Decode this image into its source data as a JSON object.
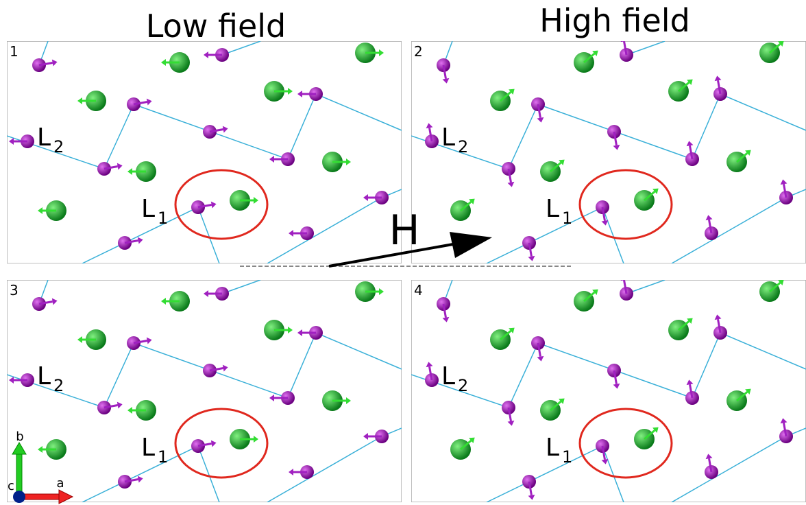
{
  "columns": {
    "left": "Low field",
    "right": "High field"
  },
  "panels": [
    {
      "number": "1",
      "l1": {
        "label": "L",
        "sub": "1"
      },
      "l2": {
        "label": "L",
        "sub": "2"
      }
    },
    {
      "number": "2",
      "l1": {
        "label": "L",
        "sub": "1"
      },
      "l2": {
        "label": "L",
        "sub": "2"
      }
    },
    {
      "number": "3",
      "l1": {
        "label": "L",
        "sub": "1"
      },
      "l2": {
        "label": "L",
        "sub": "2"
      }
    },
    {
      "number": "4",
      "l1": {
        "label": "L",
        "sub": "1"
      },
      "l2": {
        "label": "L",
        "sub": "2"
      }
    }
  ],
  "field_label": "H",
  "axes": {
    "a": "a",
    "b": "b",
    "c": "c"
  }
}
